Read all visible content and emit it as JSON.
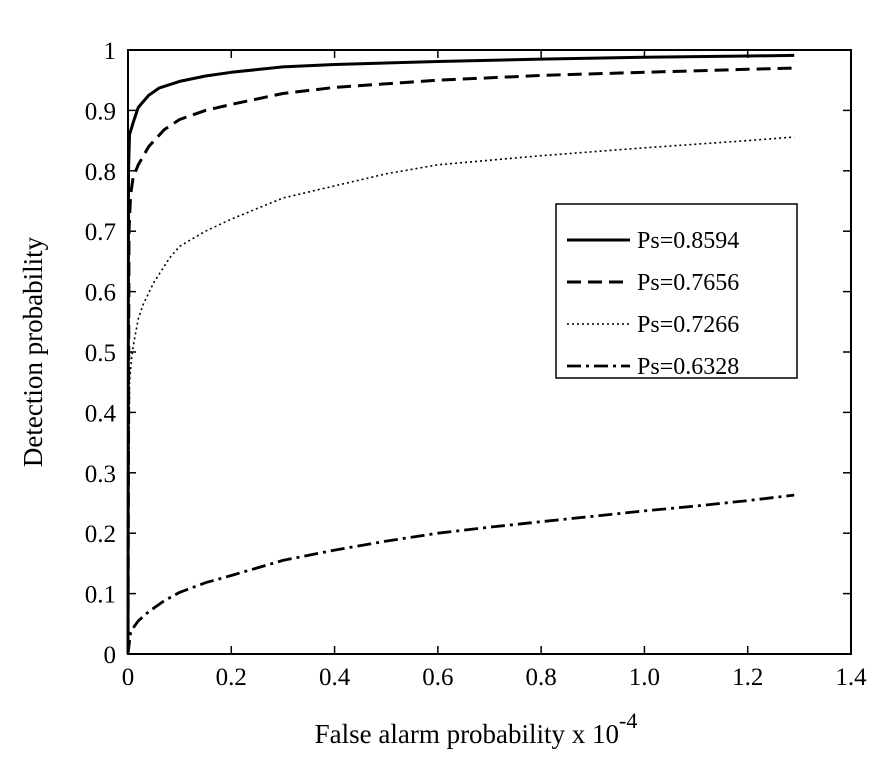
{
  "chart_data": {
    "type": "line",
    "title": "",
    "xlabel": "False alarm probability x 10",
    "xlabel_exponent": "-4",
    "ylabel": "Detection probability",
    "xlim": [
      0,
      1.4
    ],
    "ylim": [
      0,
      1
    ],
    "x_ticks": [
      0,
      0.2,
      0.4,
      0.6,
      0.8,
      1.0,
      1.2,
      1.4
    ],
    "x_tick_labels": [
      "0",
      "0.2",
      "0.4",
      "0.6",
      "0.8",
      "1.0",
      "1.2",
      "1.4"
    ],
    "y_ticks": [
      0,
      0.1,
      0.2,
      0.3,
      0.4,
      0.5,
      0.6,
      0.7,
      0.8,
      0.9,
      1
    ],
    "y_tick_labels": [
      "0",
      "0.1",
      "0.2",
      "0.3",
      "0.4",
      "0.5",
      "0.6",
      "0.7",
      "0.8",
      "0.9",
      "1"
    ],
    "grid": false,
    "legend_position": "right",
    "series": [
      {
        "name": "Ps=0.8594",
        "line_style": "solid",
        "x": [
          0,
          0.001,
          0.003,
          0.01,
          0.02,
          0.04,
          0.06,
          0.1,
          0.15,
          0.2,
          0.3,
          0.4,
          0.6,
          0.8,
          1.0,
          1.2,
          1.29
        ],
        "y": [
          0,
          0.8,
          0.86,
          0.88,
          0.905,
          0.925,
          0.937,
          0.948,
          0.957,
          0.963,
          0.972,
          0.976,
          0.981,
          0.985,
          0.988,
          0.99,
          0.991
        ]
      },
      {
        "name": "Ps=0.7656",
        "line_style": "dashed",
        "x": [
          0,
          0.002,
          0.005,
          0.01,
          0.02,
          0.04,
          0.07,
          0.1,
          0.15,
          0.2,
          0.3,
          0.4,
          0.6,
          0.8,
          1.0,
          1.2,
          1.29
        ],
        "y": [
          0,
          0.7,
          0.76,
          0.79,
          0.81,
          0.84,
          0.868,
          0.885,
          0.9,
          0.91,
          0.928,
          0.938,
          0.95,
          0.958,
          0.963,
          0.968,
          0.97
        ]
      },
      {
        "name": "Ps=0.7266",
        "line_style": "dotted",
        "x": [
          0,
          0.003,
          0.007,
          0.01,
          0.02,
          0.03,
          0.05,
          0.08,
          0.1,
          0.15,
          0.2,
          0.3,
          0.4,
          0.5,
          0.6,
          0.8,
          1.0,
          1.2,
          1.29
        ],
        "y": [
          0,
          0.45,
          0.49,
          0.51,
          0.555,
          0.58,
          0.615,
          0.655,
          0.675,
          0.7,
          0.72,
          0.755,
          0.775,
          0.795,
          0.81,
          0.825,
          0.838,
          0.85,
          0.856
        ]
      },
      {
        "name": "Ps=0.6328",
        "line_style": "dashdot",
        "x": [
          0,
          0.005,
          0.01,
          0.02,
          0.04,
          0.07,
          0.1,
          0.15,
          0.2,
          0.3,
          0.4,
          0.5,
          0.6,
          0.7,
          0.8,
          0.9,
          1.0,
          1.1,
          1.2,
          1.29
        ],
        "y": [
          0,
          0.035,
          0.043,
          0.055,
          0.07,
          0.088,
          0.102,
          0.118,
          0.13,
          0.155,
          0.172,
          0.187,
          0.2,
          0.21,
          0.219,
          0.228,
          0.237,
          0.245,
          0.254,
          0.263
        ]
      }
    ]
  }
}
